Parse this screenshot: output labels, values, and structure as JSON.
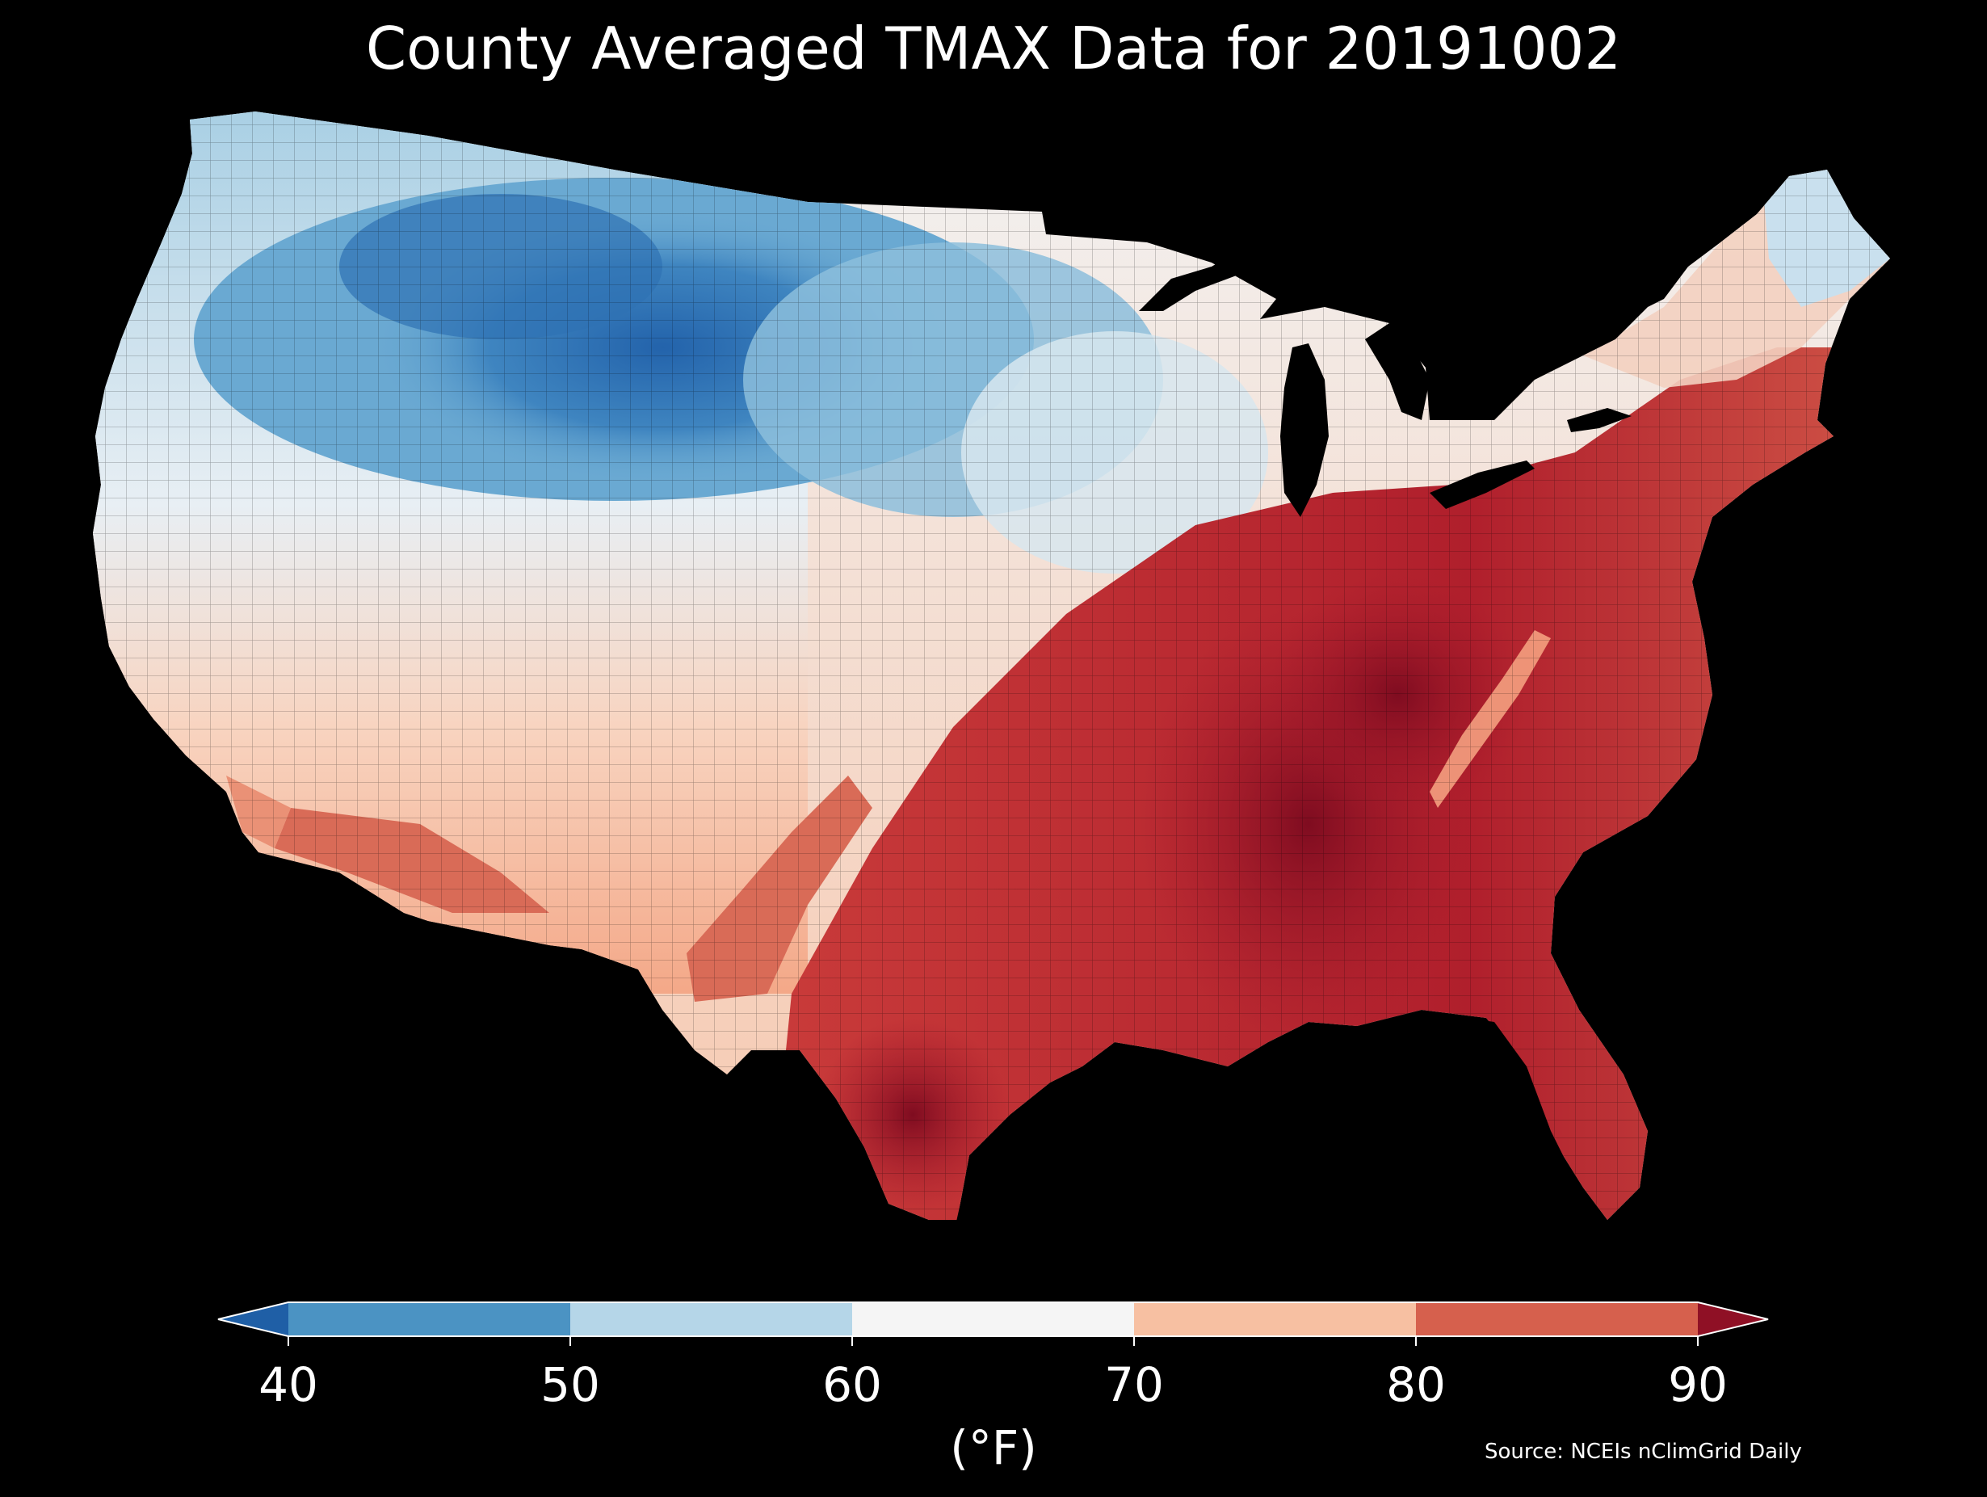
{
  "title": "County Averaged TMAX Data for 20191002",
  "source": "Source: NCEIs nClimGrid Daily",
  "colorbar": {
    "unit_label": "(°F)",
    "ticks": [
      "40",
      "50",
      "60",
      "70",
      "80",
      "90"
    ],
    "extend": "both",
    "bins": [
      {
        "range": "<40",
        "color": "#1f5fa6"
      },
      {
        "range": "40-50",
        "color": "#4b93c3"
      },
      {
        "range": "50-60",
        "color": "#b5d6e8"
      },
      {
        "range": "60-70",
        "color": "#f5f5f5"
      },
      {
        "range": "70-80",
        "color": "#f7c0a2"
      },
      {
        "range": "80-90",
        "color": "#d6604d"
      },
      {
        "range": ">90",
        "color": "#8f1025"
      }
    ]
  },
  "map": {
    "region": "Contiguous United States",
    "variable": "TMAX",
    "aggregation": "county average",
    "date": "20191002",
    "pattern": "cold (40s-50s °F) across the northern Rockies and northern Plains; near 60-70 °F along the Pacific coast, Great Lakes and New England; 80-90+ °F across the South, Southeast and Mid-Atlantic, warmest (>90 °F) over Mississippi, Alabama, Tennessee and south Texas"
  }
}
